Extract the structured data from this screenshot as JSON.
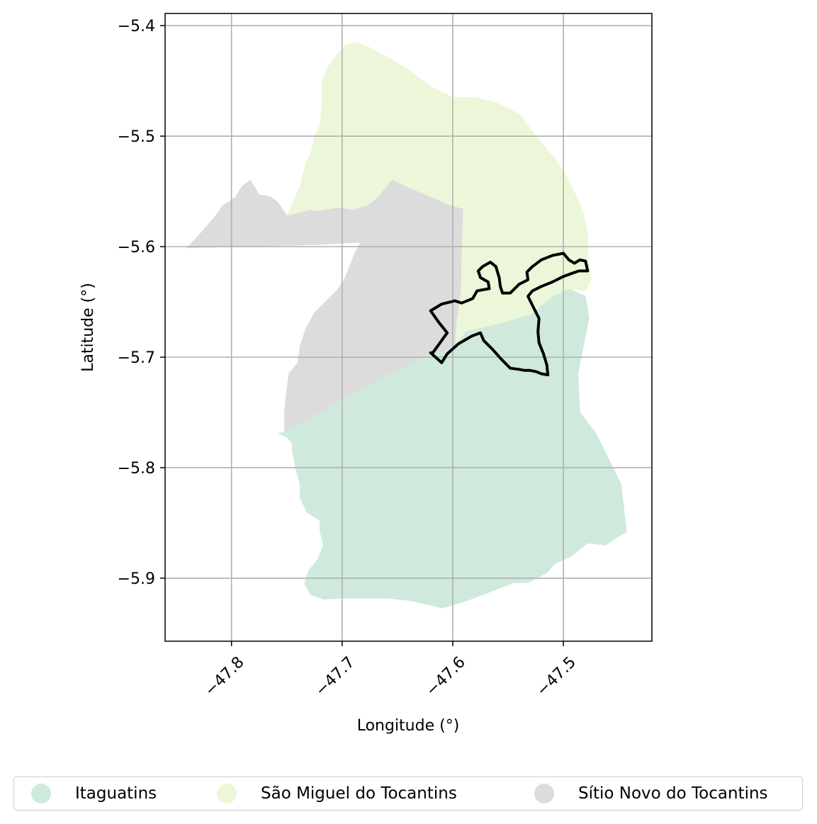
{
  "chart_data": {
    "type": "map",
    "xlabel": "Longitude (°)",
    "ylabel": "Latitude (°)",
    "xlim": [
      -47.86,
      -47.42
    ],
    "ylim": [
      -5.957,
      -5.389
    ],
    "xticks": [
      -47.8,
      -47.7,
      -47.6,
      -47.5
    ],
    "xtick_labels": [
      "−47.8",
      "−47.7",
      "−47.6",
      "−47.5"
    ],
    "yticks": [
      -5.4,
      -5.5,
      -5.6,
      -5.7,
      -5.8,
      -5.9
    ],
    "ytick_labels": [
      "−5.4",
      "−5.5",
      "−5.6",
      "−5.7",
      "−5.8",
      "−5.9"
    ],
    "grid": true,
    "legend_position": "bottom",
    "regions": [
      {
        "name": "Itaguatins",
        "color": "#cfeadc",
        "outline": [
          [
            -47.752,
            -5.768
          ],
          [
            -47.735,
            -5.758
          ],
          [
            -47.7,
            -5.738
          ],
          [
            -47.66,
            -5.716
          ],
          [
            -47.618,
            -5.696
          ],
          [
            -47.598,
            -5.69
          ],
          [
            -47.588,
            -5.676
          ],
          [
            -47.56,
            -5.67
          ],
          [
            -47.53,
            -5.661
          ],
          [
            -47.51,
            -5.645
          ],
          [
            -47.495,
            -5.638
          ],
          [
            -47.48,
            -5.645
          ],
          [
            -47.477,
            -5.665
          ],
          [
            -47.482,
            -5.69
          ],
          [
            -47.487,
            -5.715
          ],
          [
            -47.485,
            -5.75
          ],
          [
            -47.47,
            -5.77
          ],
          [
            -47.46,
            -5.79
          ],
          [
            -47.448,
            -5.815
          ],
          [
            -47.443,
            -5.858
          ],
          [
            -47.45,
            -5.862
          ],
          [
            -47.462,
            -5.87
          ],
          [
            -47.478,
            -5.868
          ],
          [
            -47.493,
            -5.88
          ],
          [
            -47.508,
            -5.887
          ],
          [
            -47.515,
            -5.895
          ],
          [
            -47.532,
            -5.904
          ],
          [
            -47.545,
            -5.904
          ],
          [
            -47.568,
            -5.913
          ],
          [
            -47.592,
            -5.922
          ],
          [
            -47.61,
            -5.927
          ],
          [
            -47.617,
            -5.925
          ],
          [
            -47.64,
            -5.92
          ],
          [
            -47.66,
            -5.918
          ],
          [
            -47.7,
            -5.918
          ],
          [
            -47.717,
            -5.919
          ],
          [
            -47.728,
            -5.915
          ],
          [
            -47.734,
            -5.905
          ],
          [
            -47.73,
            -5.893
          ],
          [
            -47.722,
            -5.883
          ],
          [
            -47.717,
            -5.87
          ],
          [
            -47.72,
            -5.857
          ],
          [
            -47.72,
            -5.848
          ],
          [
            -47.732,
            -5.84
          ],
          [
            -47.738,
            -5.827
          ],
          [
            -47.738,
            -5.815
          ],
          [
            -47.742,
            -5.8
          ],
          [
            -47.745,
            -5.785
          ],
          [
            -47.745,
            -5.778
          ],
          [
            -47.75,
            -5.772
          ],
          [
            -47.758,
            -5.769
          ]
        ]
      },
      {
        "name": "São Miguel do Tocantins",
        "color": "#ecf7d9",
        "outline": [
          [
            -47.75,
            -5.572
          ],
          [
            -47.745,
            -5.562
          ],
          [
            -47.738,
            -5.545
          ],
          [
            -47.733,
            -5.525
          ],
          [
            -47.728,
            -5.515
          ],
          [
            -47.725,
            -5.5
          ],
          [
            -47.72,
            -5.49
          ],
          [
            -47.718,
            -5.47
          ],
          [
            -47.718,
            -5.45
          ],
          [
            -47.713,
            -5.438
          ],
          [
            -47.706,
            -5.428
          ],
          [
            -47.697,
            -5.418
          ],
          [
            -47.688,
            -5.415
          ],
          [
            -47.675,
            -5.42
          ],
          [
            -47.66,
            -5.428
          ],
          [
            -47.64,
            -5.44
          ],
          [
            -47.62,
            -5.455
          ],
          [
            -47.6,
            -5.465
          ],
          [
            -47.58,
            -5.465
          ],
          [
            -47.56,
            -5.47
          ],
          [
            -47.54,
            -5.48
          ],
          [
            -47.525,
            -5.5
          ],
          [
            -47.508,
            -5.52
          ],
          [
            -47.498,
            -5.535
          ],
          [
            -47.488,
            -5.555
          ],
          [
            -47.482,
            -5.57
          ],
          [
            -47.478,
            -5.59
          ],
          [
            -47.478,
            -5.61
          ],
          [
            -47.475,
            -5.63
          ],
          [
            -47.48,
            -5.64
          ],
          [
            -47.495,
            -5.638
          ],
          [
            -47.51,
            -5.645
          ],
          [
            -47.53,
            -5.661
          ],
          [
            -47.56,
            -5.67
          ],
          [
            -47.588,
            -5.676
          ],
          [
            -47.598,
            -5.69
          ],
          [
            -47.597,
            -5.67
          ],
          [
            -47.593,
            -5.64
          ],
          [
            -47.592,
            -5.6
          ],
          [
            -47.591,
            -5.566
          ],
          [
            -47.605,
            -5.562
          ],
          [
            -47.625,
            -5.553
          ],
          [
            -47.64,
            -5.547
          ],
          [
            -47.655,
            -5.54
          ],
          [
            -47.667,
            -5.555
          ],
          [
            -47.675,
            -5.562
          ],
          [
            -47.69,
            -5.567
          ],
          [
            -47.705,
            -5.565
          ],
          [
            -47.72,
            -5.568
          ],
          [
            -47.73,
            -5.567
          ],
          [
            -47.74,
            -5.57
          ]
        ]
      },
      {
        "name": "Sítio Novo do Tocantins",
        "color": "#dcdcdc",
        "outline": [
          [
            -47.84,
            -5.601
          ],
          [
            -47.828,
            -5.588
          ],
          [
            -47.815,
            -5.573
          ],
          [
            -47.808,
            -5.563
          ],
          [
            -47.797,
            -5.556
          ],
          [
            -47.79,
            -5.545
          ],
          [
            -47.783,
            -5.54
          ],
          [
            -47.775,
            -5.553
          ],
          [
            -47.765,
            -5.555
          ],
          [
            -47.758,
            -5.56
          ],
          [
            -47.75,
            -5.572
          ],
          [
            -47.74,
            -5.57
          ],
          [
            -47.73,
            -5.567
          ],
          [
            -47.72,
            -5.568
          ],
          [
            -47.705,
            -5.565
          ],
          [
            -47.69,
            -5.567
          ],
          [
            -47.675,
            -5.562
          ],
          [
            -47.667,
            -5.555
          ],
          [
            -47.655,
            -5.54
          ],
          [
            -47.64,
            -5.547
          ],
          [
            -47.625,
            -5.553
          ],
          [
            -47.605,
            -5.562
          ],
          [
            -47.591,
            -5.566
          ],
          [
            -47.592,
            -5.6
          ],
          [
            -47.593,
            -5.64
          ],
          [
            -47.597,
            -5.67
          ],
          [
            -47.598,
            -5.69
          ],
          [
            -47.618,
            -5.696
          ],
          [
            -47.66,
            -5.716
          ],
          [
            -47.7,
            -5.738
          ],
          [
            -47.735,
            -5.758
          ],
          [
            -47.752,
            -5.768
          ],
          [
            -47.752,
            -5.75
          ],
          [
            -47.75,
            -5.73
          ],
          [
            -47.748,
            -5.715
          ],
          [
            -47.74,
            -5.705
          ],
          [
            -47.738,
            -5.69
          ],
          [
            -47.733,
            -5.675
          ],
          [
            -47.725,
            -5.66
          ],
          [
            -47.715,
            -5.65
          ],
          [
            -47.705,
            -5.64
          ],
          [
            -47.698,
            -5.63
          ],
          [
            -47.692,
            -5.615
          ],
          [
            -47.688,
            -5.605
          ],
          [
            -47.683,
            -5.596
          ],
          [
            -47.72,
            -5.598
          ],
          [
            -47.76,
            -5.599
          ],
          [
            -47.8,
            -5.6
          ]
        ]
      }
    ],
    "highlight_outline": [
      [
        -47.618,
        -5.696
      ],
      [
        -47.605,
        -5.678
      ],
      [
        -47.613,
        -5.668
      ],
      [
        -47.62,
        -5.658
      ],
      [
        -47.61,
        -5.652
      ],
      [
        -47.598,
        -5.649
      ],
      [
        -47.592,
        -5.651
      ],
      [
        -47.582,
        -5.647
      ],
      [
        -47.578,
        -5.64
      ],
      [
        -47.567,
        -5.638
      ],
      [
        -47.568,
        -5.632
      ],
      [
        -47.575,
        -5.628
      ],
      [
        -47.577,
        -5.622
      ],
      [
        -47.573,
        -5.618
      ],
      [
        -47.566,
        -5.614
      ],
      [
        -47.561,
        -5.618
      ],
      [
        -47.558,
        -5.628
      ],
      [
        -47.557,
        -5.636
      ],
      [
        -47.555,
        -5.642
      ],
      [
        -47.548,
        -5.642
      ],
      [
        -47.54,
        -5.634
      ],
      [
        -47.532,
        -5.63
      ],
      [
        -47.533,
        -5.623
      ],
      [
        -47.528,
        -5.618
      ],
      [
        -47.52,
        -5.612
      ],
      [
        -47.51,
        -5.608
      ],
      [
        -47.5,
        -5.606
      ],
      [
        -47.495,
        -5.612
      ],
      [
        -47.49,
        -5.615
      ],
      [
        -47.485,
        -5.612
      ],
      [
        -47.48,
        -5.613
      ],
      [
        -47.478,
        -5.622
      ],
      [
        -47.486,
        -5.622
      ],
      [
        -47.492,
        -5.624
      ],
      [
        -47.5,
        -5.627
      ],
      [
        -47.51,
        -5.632
      ],
      [
        -47.52,
        -5.636
      ],
      [
        -47.528,
        -5.64
      ],
      [
        -47.532,
        -5.645
      ],
      [
        -47.527,
        -5.655
      ],
      [
        -47.522,
        -5.665
      ],
      [
        -47.523,
        -5.677
      ],
      [
        -47.522,
        -5.687
      ],
      [
        -47.518,
        -5.697
      ],
      [
        -47.515,
        -5.707
      ],
      [
        -47.514,
        -5.716
      ],
      [
        -47.52,
        -5.715
      ],
      [
        -47.525,
        -5.713
      ],
      [
        -47.53,
        -5.712
      ],
      [
        -47.535,
        -5.712
      ],
      [
        -47.54,
        -5.711
      ],
      [
        -47.548,
        -5.71
      ],
      [
        -47.556,
        -5.702
      ],
      [
        -47.564,
        -5.693
      ],
      [
        -47.572,
        -5.685
      ],
      [
        -47.575,
        -5.678
      ],
      [
        -47.583,
        -5.681
      ],
      [
        -47.595,
        -5.688
      ],
      [
        -47.605,
        -5.697
      ],
      [
        -47.61,
        -5.705
      ],
      [
        -47.62,
        -5.696
      ]
    ]
  },
  "legend": {
    "items": [
      {
        "label": "Itaguatins",
        "color": "#cfeadc"
      },
      {
        "label": "São Miguel do Tocantins",
        "color": "#ecf7d9"
      },
      {
        "label": "Sítio Novo do Tocantins",
        "color": "#dcdcdc"
      }
    ]
  }
}
